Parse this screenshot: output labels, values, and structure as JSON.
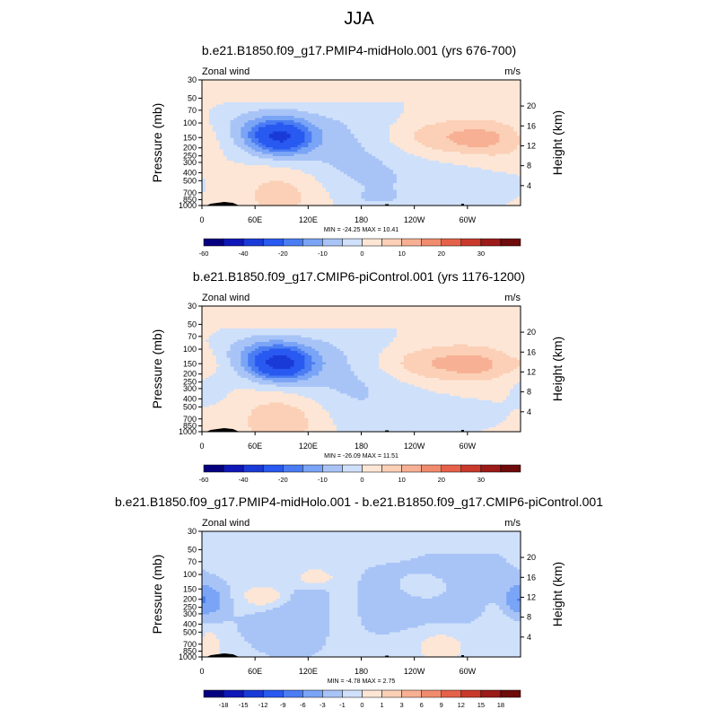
{
  "figure_title": "JJA",
  "colors": {
    "levels_wind": [
      -60,
      -50,
      -40,
      -30,
      -20,
      -15,
      -10,
      -5,
      0,
      5,
      10,
      15,
      20,
      25,
      30,
      35
    ],
    "levels_diff": [
      -20,
      -18,
      -15,
      -12,
      -9,
      -6,
      -3,
      -1,
      0,
      1,
      3,
      6,
      9,
      12,
      15,
      18
    ],
    "palette": [
      "#050080",
      "#0f17b8",
      "#1a3ad7",
      "#2859f0",
      "#4a7cf3",
      "#7aa4f5",
      "#a8c4f7",
      "#cfe0fa",
      "#fde6d6",
      "#fbd0b6",
      "#f7b094",
      "#f18b6d",
      "#e56149",
      "#c93a2c",
      "#9c1a18",
      "#6e0b0b"
    ]
  },
  "chart_data": [
    {
      "type": "heatmap",
      "title": "b.e21.B1850.f09_g17.PMIP4-midHolo.001 (yrs 676-700)",
      "field_label": "Zonal wind",
      "units": "m/s",
      "ylabel": "Pressure (mb)",
      "y2label": "Height (km)",
      "x_ticks": [
        "0",
        "60E",
        "120E",
        "180",
        "120W",
        "60W"
      ],
      "x_tick_values": [
        0,
        60,
        120,
        180,
        240,
        300
      ],
      "xlim": [
        0,
        360
      ],
      "y_ticks": [
        "30",
        "50",
        "70",
        "100",
        "150",
        "200",
        "250",
        "300",
        "400",
        "500",
        "700",
        "850",
        "1000"
      ],
      "y_tick_values": [
        30,
        50,
        70,
        100,
        150,
        200,
        250,
        300,
        400,
        500,
        700,
        850,
        1000
      ],
      "ylim": [
        30,
        1000
      ],
      "y_scale": "log",
      "y2_ticks": [
        "4",
        "8",
        "12",
        "16",
        "20"
      ],
      "y2_tick_values": [
        4,
        8,
        12,
        16,
        20
      ],
      "stats_text": "MIN = -24.25  MAX =  10.41",
      "min": -24.25,
      "max": 10.41,
      "colorbar_labels": [
        "-60",
        "-40",
        "-20",
        "-10",
        "0",
        "10",
        "20",
        "30"
      ],
      "colorbar_label_values": [
        -60,
        -40,
        -20,
        -10,
        0,
        10,
        20,
        30
      ],
      "background_value": 2,
      "blobs": [
        {
          "lon": 88,
          "p": 150,
          "sx": 24,
          "sy": 0.32,
          "a": -24
        },
        {
          "lon": 65,
          "p": 110,
          "sx": 42,
          "sy": 0.45,
          "a": -8
        },
        {
          "lon": 110,
          "p": 170,
          "sx": 55,
          "sy": 0.6,
          "a": -4
        },
        {
          "lon": 175,
          "p": 220,
          "sx": 55,
          "sy": 1.2,
          "a": -6
        },
        {
          "lon": 260,
          "p": 600,
          "sx": 100,
          "sy": 0.6,
          "a": -4
        },
        {
          "lon": 200,
          "p": 780,
          "sx": 12,
          "sy": 0.1,
          "a": -6
        },
        {
          "lon": 285,
          "p": 150,
          "sx": 55,
          "sy": 0.35,
          "a": 9
        },
        {
          "lon": 310,
          "p": 160,
          "sx": 16,
          "sy": 0.22,
          "a": 3
        },
        {
          "lon": 95,
          "p": 680,
          "sx": 38,
          "sy": 0.55,
          "a": 7
        },
        {
          "lon": 340,
          "p": 170,
          "sx": 20,
          "sy": 0.4,
          "a": 3
        }
      ]
    },
    {
      "type": "heatmap",
      "title": "b.e21.B1850.f09_g17.CMIP6-piControl.001 (yrs 1176-1200)",
      "field_label": "Zonal wind",
      "units": "m/s",
      "ylabel": "Pressure (mb)",
      "y2label": "Height (km)",
      "x_ticks": [
        "0",
        "60E",
        "120E",
        "180",
        "120W",
        "60W"
      ],
      "x_tick_values": [
        0,
        60,
        120,
        180,
        240,
        300
      ],
      "xlim": [
        0,
        360
      ],
      "y_ticks": [
        "30",
        "50",
        "70",
        "100",
        "150",
        "200",
        "250",
        "300",
        "400",
        "500",
        "700",
        "850",
        "1000"
      ],
      "y_tick_values": [
        30,
        50,
        70,
        100,
        150,
        200,
        250,
        300,
        400,
        500,
        700,
        850,
        1000
      ],
      "ylim": [
        30,
        1000
      ],
      "y_scale": "log",
      "y2_ticks": [
        "4",
        "8",
        "12",
        "16",
        "20"
      ],
      "y2_tick_values": [
        4,
        8,
        12,
        16,
        20
      ],
      "stats_text": "MIN = -26.09  MAX =  11.51",
      "min": -26.09,
      "max": 11.51,
      "colorbar_labels": [
        "-60",
        "-40",
        "-20",
        "-10",
        "0",
        "10",
        "20",
        "30"
      ],
      "colorbar_label_values": [
        -60,
        -40,
        -20,
        -10,
        0,
        10,
        20,
        30
      ],
      "background_value": 2,
      "blobs": [
        {
          "lon": 88,
          "p": 150,
          "sx": 24,
          "sy": 0.32,
          "a": -26
        },
        {
          "lon": 65,
          "p": 110,
          "sx": 42,
          "sy": 0.45,
          "a": -9
        },
        {
          "lon": 110,
          "p": 170,
          "sx": 55,
          "sy": 0.6,
          "a": -4
        },
        {
          "lon": 170,
          "p": 220,
          "sx": 50,
          "sy": 1.2,
          "a": -6
        },
        {
          "lon": 260,
          "p": 620,
          "sx": 100,
          "sy": 0.6,
          "a": -3
        },
        {
          "lon": 10,
          "p": 260,
          "sx": 15,
          "sy": 0.35,
          "a": -4
        },
        {
          "lon": 280,
          "p": 150,
          "sx": 60,
          "sy": 0.35,
          "a": 10
        },
        {
          "lon": 310,
          "p": 160,
          "sx": 16,
          "sy": 0.22,
          "a": 3
        },
        {
          "lon": 95,
          "p": 680,
          "sx": 38,
          "sy": 0.55,
          "a": 8
        },
        {
          "lon": 5,
          "p": 160,
          "sx": 12,
          "sy": 0.3,
          "a": 3
        }
      ]
    },
    {
      "type": "heatmap",
      "title": "b.e21.B1850.f09_g17.PMIP4-midHolo.001 - b.e21.B1850.f09_g17.CMIP6-piControl.001",
      "field_label": "Zonal wind",
      "units": "m/s",
      "ylabel": "Pressure (mb)",
      "y2label": "Height (km)",
      "x_ticks": [
        "0",
        "60E",
        "120E",
        "180",
        "120W",
        "60W"
      ],
      "x_tick_values": [
        0,
        60,
        120,
        180,
        240,
        300
      ],
      "xlim": [
        0,
        360
      ],
      "y_ticks": [
        "30",
        "50",
        "70",
        "100",
        "150",
        "200",
        "250",
        "300",
        "400",
        "500",
        "700",
        "850",
        "1000"
      ],
      "y_tick_values": [
        30,
        50,
        70,
        100,
        150,
        200,
        250,
        300,
        400,
        500,
        700,
        850,
        1000
      ],
      "ylim": [
        30,
        1000
      ],
      "y_scale": "log",
      "y2_ticks": [
        "4",
        "8",
        "12",
        "16",
        "20"
      ],
      "y2_tick_values": [
        4,
        8,
        12,
        16,
        20
      ],
      "stats_text": "MIN = -4.78  MAX =  2.75",
      "min": -4.78,
      "max": 2.75,
      "colorbar_labels": [
        "-18",
        "-15",
        "-12",
        "-9",
        "-6",
        "-3",
        "-1",
        "0",
        "1",
        "3",
        "6",
        "9",
        "12",
        "15",
        "18"
      ],
      "colorbar_label_values": [
        -18,
        -15,
        -12,
        -9,
        -6,
        -3,
        -1,
        0,
        1,
        3,
        6,
        9,
        12,
        15,
        18
      ],
      "background_value": -0.6,
      "blobs": [
        {
          "lon": 10,
          "p": 210,
          "sx": 12,
          "sy": 0.3,
          "a": -3.5
        },
        {
          "lon": 355,
          "p": 200,
          "sx": 10,
          "sy": 0.3,
          "a": -3.5
        },
        {
          "lon": 100,
          "p": 300,
          "sx": 35,
          "sy": 0.7,
          "a": -2
        },
        {
          "lon": 215,
          "p": 200,
          "sx": 40,
          "sy": 0.6,
          "a": -1.5
        },
        {
          "lon": 300,
          "p": 150,
          "sx": 40,
          "sy": 0.8,
          "a": -1.2
        },
        {
          "lon": 75,
          "p": 190,
          "sx": 22,
          "sy": 0.3,
          "a": 2.4
        },
        {
          "lon": 125,
          "p": 110,
          "sx": 15,
          "sy": 0.2,
          "a": 1.8
        },
        {
          "lon": 250,
          "p": 150,
          "sx": 28,
          "sy": 0.3,
          "a": 1.6
        },
        {
          "lon": 270,
          "p": 700,
          "sx": 25,
          "sy": 0.4,
          "a": 1.2
        },
        {
          "lon": 10,
          "p": 750,
          "sx": 8,
          "sy": 0.3,
          "a": 1.5
        },
        {
          "lon": 160,
          "p": 250,
          "sx": 12,
          "sy": 0.8,
          "a": 1.5
        },
        {
          "lon": 340,
          "p": 300,
          "sx": 20,
          "sy": 0.5,
          "a": 0.8
        }
      ]
    }
  ]
}
